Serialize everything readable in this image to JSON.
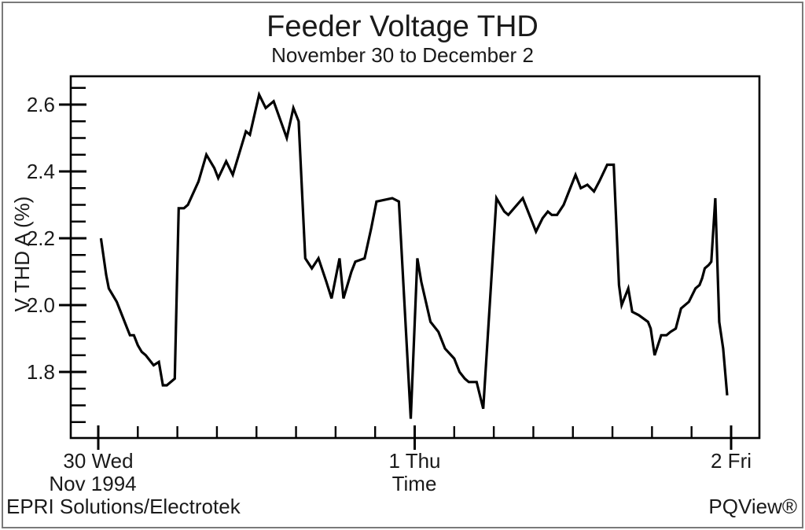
{
  "window": {
    "footer_left": "EPRI Solutions/Electrotek",
    "footer_right": "PQView®"
  },
  "chart_data": {
    "type": "line",
    "title": "Feeder Voltage THD",
    "subtitle": "November 30 to December 2",
    "xlabel": "Time",
    "ylabel": "V THD A (%)",
    "line_color": "#000000",
    "background": "#ffffff",
    "grid": "off",
    "ylim": [
      1.6,
      2.685
    ],
    "xlim_hours": [
      -2.1,
      50.1
    ],
    "y_major_ticks": [
      1.8,
      2.0,
      2.2,
      2.4,
      2.6
    ],
    "y_minor_tick_step": 0.05,
    "x_ticks": [
      {
        "hours": 0,
        "label": "30 Wed",
        "sublabel": "Nov 1994"
      },
      {
        "hours": 24,
        "label": "1 Thu",
        "sublabel": ""
      },
      {
        "hours": 48,
        "label": "2 Fri",
        "sublabel": ""
      }
    ],
    "x_minor_tick_step_hours": 3,
    "x_unit": "hours after 1994-11-30 00:00",
    "series": [
      {
        "name": "V THD A (%)",
        "unit": "%",
        "points": [
          [
            0.2,
            2.2
          ],
          [
            0.6,
            2.09
          ],
          [
            0.8,
            2.05
          ],
          [
            1.4,
            2.01
          ],
          [
            1.7,
            1.98
          ],
          [
            2.2,
            1.93
          ],
          [
            2.4,
            1.91
          ],
          [
            2.7,
            1.91
          ],
          [
            3.0,
            1.88
          ],
          [
            3.3,
            1.86
          ],
          [
            3.6,
            1.85
          ],
          [
            4.2,
            1.82
          ],
          [
            4.6,
            1.83
          ],
          [
            4.9,
            1.76
          ],
          [
            5.2,
            1.76
          ],
          [
            5.8,
            1.78
          ],
          [
            6.1,
            2.29
          ],
          [
            6.5,
            2.29
          ],
          [
            6.8,
            2.3
          ],
          [
            7.6,
            2.37
          ],
          [
            8.2,
            2.45
          ],
          [
            8.8,
            2.41
          ],
          [
            9.1,
            2.38
          ],
          [
            9.7,
            2.43
          ],
          [
            10.2,
            2.39
          ],
          [
            11.2,
            2.52
          ],
          [
            11.5,
            2.51
          ],
          [
            12.2,
            2.63
          ],
          [
            12.7,
            2.59
          ],
          [
            13.3,
            2.61
          ],
          [
            14.3,
            2.5
          ],
          [
            14.8,
            2.59
          ],
          [
            15.2,
            2.55
          ],
          [
            15.7,
            2.14
          ],
          [
            16.2,
            2.11
          ],
          [
            16.7,
            2.14
          ],
          [
            17.3,
            2.07
          ],
          [
            17.7,
            2.02
          ],
          [
            18.3,
            2.14
          ],
          [
            18.6,
            2.02
          ],
          [
            19.2,
            2.1
          ],
          [
            19.5,
            2.13
          ],
          [
            20.2,
            2.14
          ],
          [
            20.7,
            2.23
          ],
          [
            21.1,
            2.31
          ],
          [
            22.3,
            2.32
          ],
          [
            22.8,
            2.31
          ],
          [
            23.7,
            1.66
          ],
          [
            24.2,
            2.14
          ],
          [
            24.5,
            2.07
          ],
          [
            25.2,
            1.95
          ],
          [
            25.8,
            1.92
          ],
          [
            26.3,
            1.87
          ],
          [
            27.0,
            1.84
          ],
          [
            27.4,
            1.8
          ],
          [
            27.8,
            1.78
          ],
          [
            28.1,
            1.77
          ],
          [
            28.7,
            1.77
          ],
          [
            29.2,
            1.69
          ],
          [
            30.2,
            2.32
          ],
          [
            30.8,
            2.28
          ],
          [
            31.1,
            2.27
          ],
          [
            32.2,
            2.32
          ],
          [
            33.2,
            2.22
          ],
          [
            33.7,
            2.26
          ],
          [
            34.1,
            2.28
          ],
          [
            34.4,
            2.27
          ],
          [
            34.8,
            2.27
          ],
          [
            35.3,
            2.3
          ],
          [
            35.7,
            2.34
          ],
          [
            36.2,
            2.39
          ],
          [
            36.6,
            2.35
          ],
          [
            37.1,
            2.36
          ],
          [
            37.6,
            2.34
          ],
          [
            38.0,
            2.37
          ],
          [
            38.6,
            2.42
          ],
          [
            39.1,
            2.42
          ],
          [
            39.5,
            2.06
          ],
          [
            39.7,
            2.0
          ],
          [
            40.2,
            2.05
          ],
          [
            40.5,
            1.98
          ],
          [
            41.0,
            1.97
          ],
          [
            41.7,
            1.95
          ],
          [
            41.9,
            1.93
          ],
          [
            42.2,
            1.85
          ],
          [
            42.7,
            1.91
          ],
          [
            43.1,
            1.91
          ],
          [
            43.4,
            1.92
          ],
          [
            43.8,
            1.93
          ],
          [
            44.2,
            1.99
          ],
          [
            44.8,
            2.01
          ],
          [
            45.3,
            2.05
          ],
          [
            45.6,
            2.06
          ],
          [
            45.8,
            2.08
          ],
          [
            46.0,
            2.11
          ],
          [
            46.3,
            2.12
          ],
          [
            46.5,
            2.13
          ],
          [
            46.8,
            2.32
          ],
          [
            47.1,
            1.95
          ],
          [
            47.4,
            1.87
          ],
          [
            47.7,
            1.73
          ]
        ]
      }
    ]
  }
}
